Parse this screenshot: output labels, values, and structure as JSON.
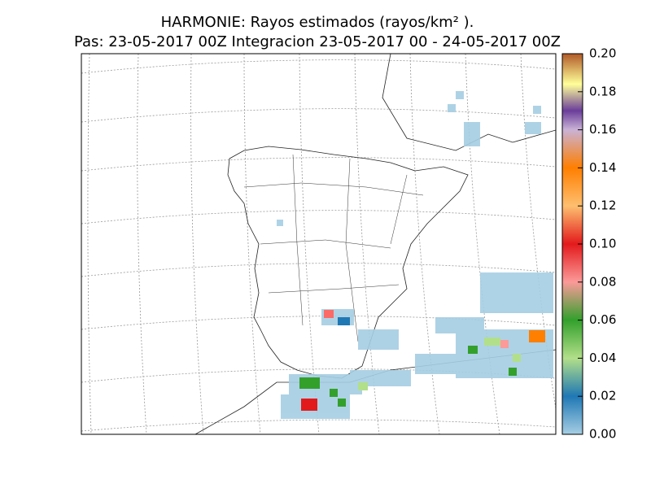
{
  "map": {
    "title": "HARMONIE: Rayos estimados  (rayos/km² ).",
    "subtitle": "Pas: 23-05-2017 00Z Integracion 23-05-2017 00 - 24-05-2017 00Z",
    "colorbar": {
      "lim": [
        0,
        0.2
      ],
      "ticks": [
        {
          "value": 0,
          "label": "0.00"
        },
        {
          "value": 0.02,
          "label": "0.02"
        },
        {
          "value": 0.04,
          "label": "0.04"
        },
        {
          "value": 0.06,
          "label": "0.06"
        },
        {
          "value": 0.08,
          "label": "0.08"
        },
        {
          "value": 0.1,
          "label": "0.10"
        },
        {
          "value": 0.12,
          "label": "0.12"
        },
        {
          "value": 0.14,
          "label": "0.14"
        },
        {
          "value": 0.16,
          "label": "0.16"
        },
        {
          "value": 0.18,
          "label": "0.18"
        },
        {
          "value": 0.2,
          "label": "0.20"
        }
      ]
    }
  }
}
